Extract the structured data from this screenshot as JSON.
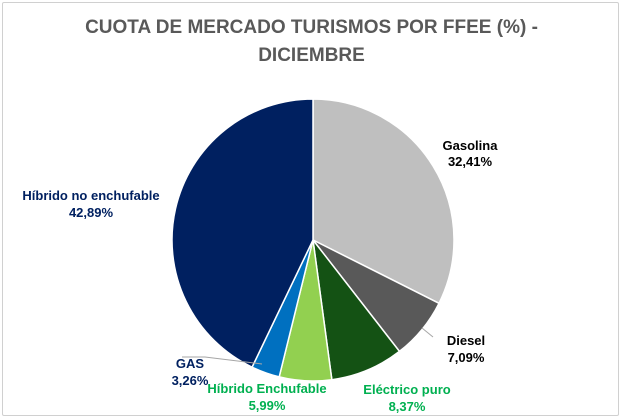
{
  "chart_data": {
    "type": "pie",
    "title_lines": [
      "CUOTA DE MERCADO TURISMOS POR FFEE (%) -",
      "DICIEMBRE"
    ],
    "slices": [
      {
        "name": "Gasolina",
        "value": 32.41,
        "value_label": "32,41%",
        "color": "#bfbfbf",
        "label_color": "#000000"
      },
      {
        "name": "Diesel",
        "value": 7.09,
        "value_label": "7,09%",
        "color": "#595959",
        "label_color": "#000000"
      },
      {
        "name": "Eléctrico puro",
        "value": 8.37,
        "value_label": "8,37%",
        "color": "#145214",
        "label_color": "#00b050"
      },
      {
        "name": "Híbrido Enchufable",
        "value": 5.99,
        "value_label": "5,99%",
        "color": "#92d050",
        "label_color": "#00b050"
      },
      {
        "name": "GAS",
        "value": 3.26,
        "value_label": "3,26%",
        "color": "#0070c0",
        "label_color": "#002060"
      },
      {
        "name": "Híbrido no enchufable",
        "value": 42.89,
        "value_label": "42,89%",
        "color": "#002060",
        "label_color": "#002060"
      }
    ],
    "start_angle_deg": 0,
    "direction": "clockwise"
  }
}
